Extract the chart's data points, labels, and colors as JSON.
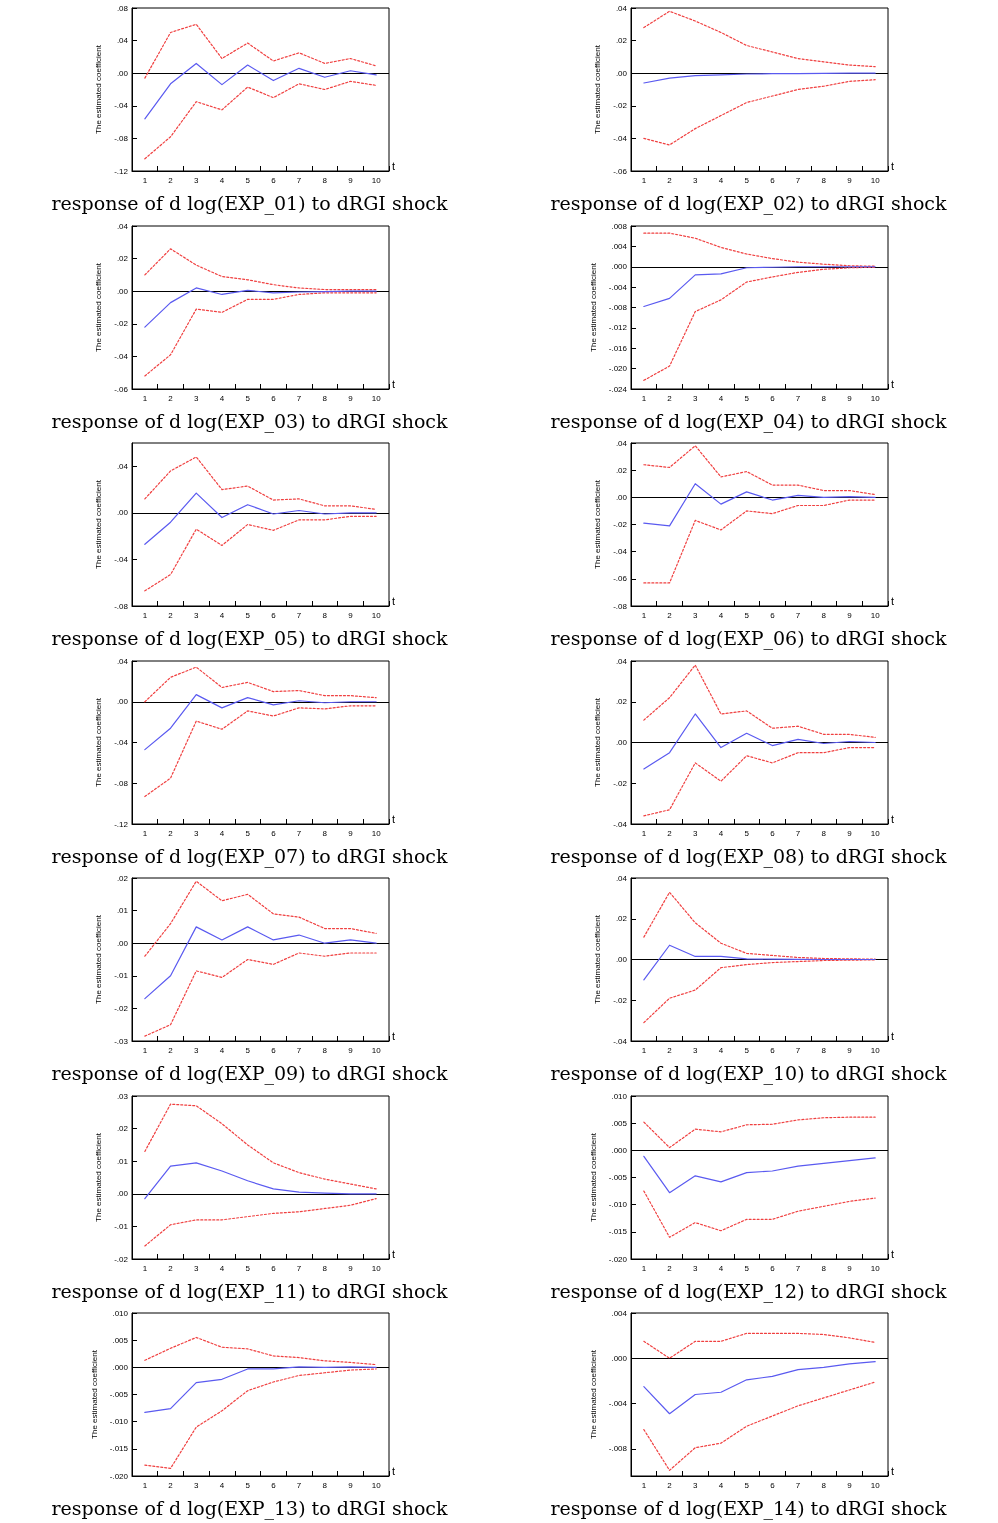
{
  "chart_data": [
    {
      "type": "line",
      "title": "response of d log(EXP_01) to dRGI shock",
      "xlabel": "t",
      "ylabel": "The estimated coefficient",
      "marker": "none",
      "categories": [
        "1",
        "2",
        "3",
        "4",
        "5",
        "6",
        "7",
        "8",
        "9",
        "10"
      ],
      "ylim": [
        -0.12,
        0.08
      ],
      "yticks": [
        {
          "value": 0.08,
          "label": ".08"
        },
        {
          "value": 0.04,
          "label": ".04"
        },
        {
          "value": 0,
          "label": ".00"
        },
        {
          "value": -0.04,
          "label": "-.04"
        },
        {
          "value": -0.08,
          "label": "-.08"
        },
        {
          "value": -0.12,
          "label": "-.12"
        }
      ],
      "ref_lines": [
        {
          "axis": "y",
          "value": 0,
          "color": "#000000"
        }
      ],
      "series": [
        {
          "color": "#5a5af0",
          "line_style": "solid",
          "values": [
            -0.056,
            -0.013,
            0.012,
            -0.014,
            0.01,
            -0.009,
            0.006,
            -0.005,
            0.003,
            -0.002
          ]
        },
        {
          "color": "#f04040",
          "line_style": "dotted",
          "values": [
            -0.006,
            0.05,
            0.06,
            0.018,
            0.037,
            0.015,
            0.025,
            0.012,
            0.018,
            0.009
          ]
        },
        {
          "color": "#f04040",
          "line_style": "dotted",
          "values": [
            -0.105,
            -0.078,
            -0.035,
            -0.045,
            -0.017,
            -0.03,
            -0.013,
            -0.02,
            -0.01,
            -0.015
          ]
        }
      ]
    },
    {
      "type": "line",
      "title": "response of d log(EXP_02) to dRGI shock",
      "xlabel": "t",
      "ylabel": "The estimated coefficient",
      "marker": "none",
      "categories": [
        "1",
        "2",
        "3",
        "4",
        "5",
        "6",
        "7",
        "8",
        "9",
        "10"
      ],
      "ylim": [
        -0.06,
        0.04
      ],
      "yticks": [
        {
          "value": 0.04,
          "label": ".04"
        },
        {
          "value": 0.02,
          "label": ".02"
        },
        {
          "value": 0,
          "label": ".00"
        },
        {
          "value": -0.02,
          "label": "-.02"
        },
        {
          "value": -0.04,
          "label": "-.04"
        },
        {
          "value": -0.06,
          "label": "-.06"
        }
      ],
      "ref_lines": [
        {
          "axis": "y",
          "value": 0,
          "color": "#000000"
        }
      ],
      "series": [
        {
          "color": "#5a5af0",
          "line_style": "solid",
          "values": [
            -0.006,
            -0.003,
            -0.0015,
            -0.001,
            -0.0005,
            -0.0003,
            -0.0002,
            -0.0001,
            0,
            0
          ]
        },
        {
          "color": "#f04040",
          "line_style": "dotted",
          "values": [
            0.028,
            0.038,
            0.032,
            0.025,
            0.017,
            0.013,
            0.009,
            0.007,
            0.005,
            0.004
          ]
        },
        {
          "color": "#f04040",
          "line_style": "dotted",
          "values": [
            -0.04,
            -0.044,
            -0.034,
            -0.026,
            -0.018,
            -0.014,
            -0.01,
            -0.008,
            -0.005,
            -0.004
          ]
        }
      ]
    },
    {
      "type": "line",
      "title": "response of d log(EXP_03) to dRGI shock",
      "xlabel": "t",
      "ylabel": "The estimated coefficient",
      "marker": "none",
      "categories": [
        "1",
        "2",
        "3",
        "4",
        "5",
        "6",
        "7",
        "8",
        "9",
        "10"
      ],
      "ylim": [
        -0.06,
        0.04
      ],
      "yticks": [
        {
          "value": 0.04,
          "label": ".04"
        },
        {
          "value": 0.02,
          "label": ".02"
        },
        {
          "value": 0,
          "label": ".00"
        },
        {
          "value": -0.02,
          "label": "-.02"
        },
        {
          "value": -0.04,
          "label": "-.04"
        },
        {
          "value": -0.06,
          "label": "-.06"
        }
      ],
      "ref_lines": [
        {
          "axis": "y",
          "value": 0,
          "color": "#000000"
        }
      ],
      "series": [
        {
          "color": "#5a5af0",
          "line_style": "solid",
          "values": [
            -0.022,
            -0.007,
            0.002,
            -0.002,
            0.0005,
            -0.001,
            -0.0005,
            -0.0003,
            0,
            0
          ]
        },
        {
          "color": "#f04040",
          "line_style": "dotted",
          "values": [
            0.01,
            0.026,
            0.016,
            0.009,
            0.007,
            0.004,
            0.002,
            0.001,
            0.001,
            0.001
          ]
        },
        {
          "color": "#f04040",
          "line_style": "dotted",
          "values": [
            -0.052,
            -0.039,
            -0.011,
            -0.013,
            -0.005,
            -0.005,
            -0.002,
            -0.001,
            -0.001,
            -0.001
          ]
        }
      ]
    },
    {
      "type": "line",
      "title": "response of d log(EXP_04) to dRGI shock",
      "xlabel": "t",
      "ylabel": "The estimated coefficient",
      "marker": "none",
      "categories": [
        "1",
        "2",
        "3",
        "4",
        "5",
        "6",
        "7",
        "8",
        "9",
        "10"
      ],
      "ylim": [
        -0.024,
        0.008
      ],
      "yticks": [
        {
          "value": 0.008,
          "label": ".008"
        },
        {
          "value": 0.004,
          "label": ".004"
        },
        {
          "value": 0,
          "label": ".000"
        },
        {
          "value": -0.004,
          "label": "-.004"
        },
        {
          "value": -0.008,
          "label": "-.008"
        },
        {
          "value": -0.012,
          "label": "-.012"
        },
        {
          "value": -0.016,
          "label": "-.016"
        },
        {
          "value": -0.02,
          "label": "-.020"
        },
        {
          "value": -0.024,
          "label": "-.024"
        }
      ],
      "ref_lines": [
        {
          "axis": "y",
          "value": 0,
          "color": "#000000"
        }
      ],
      "series": [
        {
          "color": "#5a5af0",
          "line_style": "solid",
          "values": [
            -0.0078,
            -0.0062,
            -0.0016,
            -0.0014,
            -0.0002,
            -0.0001,
            0,
            0,
            0,
            0
          ]
        },
        {
          "color": "#f04040",
          "line_style": "dotted",
          "values": [
            0.0066,
            0.0066,
            0.0056,
            0.0038,
            0.0025,
            0.0016,
            0.0009,
            0.0005,
            0.0002,
            0.0001
          ]
        },
        {
          "color": "#f04040",
          "line_style": "dotted",
          "values": [
            -0.0223,
            -0.0195,
            -0.0088,
            -0.0065,
            -0.003,
            -0.002,
            -0.0011,
            -0.0005,
            -0.0002,
            -0.0001
          ]
        }
      ]
    },
    {
      "type": "line",
      "title": "response of d log(EXP_05) to dRGI shock",
      "xlabel": "t",
      "ylabel": "The estimated coefficient",
      "marker": "none",
      "categories": [
        "1",
        "2",
        "3",
        "4",
        "5",
        "6",
        "7",
        "8",
        "9",
        "10"
      ],
      "ylim": [
        -0.08,
        0.06
      ],
      "yticks": [
        {
          "value": 0.04,
          "label": ".04"
        },
        {
          "value": 0,
          "label": ".00"
        },
        {
          "value": -0.04,
          "label": "-.04"
        },
        {
          "value": -0.08,
          "label": "-.08"
        }
      ],
      "ref_lines": [
        {
          "axis": "y",
          "value": 0,
          "color": "#000000"
        }
      ],
      "series": [
        {
          "color": "#5a5af0",
          "line_style": "solid",
          "values": [
            -0.027,
            -0.008,
            0.017,
            -0.004,
            0.007,
            -0.001,
            0.002,
            -0.001,
            0,
            0
          ]
        },
        {
          "color": "#f04040",
          "line_style": "dotted",
          "values": [
            0.012,
            0.036,
            0.048,
            0.02,
            0.023,
            0.011,
            0.012,
            0.006,
            0.006,
            0.003
          ]
        },
        {
          "color": "#f04040",
          "line_style": "dotted",
          "values": [
            -0.067,
            -0.053,
            -0.014,
            -0.028,
            -0.01,
            -0.015,
            -0.006,
            -0.006,
            -0.003,
            -0.003
          ]
        }
      ]
    },
    {
      "type": "line",
      "title": "response of d log(EXP_06) to dRGI shock",
      "xlabel": "t",
      "ylabel": "The estimated coefficient",
      "marker": "none",
      "categories": [
        "1",
        "2",
        "3",
        "4",
        "5",
        "6",
        "7",
        "8",
        "9",
        "10"
      ],
      "ylim": [
        -0.08,
        0.04
      ],
      "yticks": [
        {
          "value": 0.04,
          "label": ".04"
        },
        {
          "value": 0.02,
          "label": ".02"
        },
        {
          "value": 0,
          "label": ".00"
        },
        {
          "value": -0.02,
          "label": "-.02"
        },
        {
          "value": -0.04,
          "label": "-.04"
        },
        {
          "value": -0.06,
          "label": "-.06"
        },
        {
          "value": -0.08,
          "label": "-.08"
        }
      ],
      "ref_lines": [
        {
          "axis": "y",
          "value": 0,
          "color": "#000000"
        }
      ],
      "series": [
        {
          "color": "#5a5af0",
          "line_style": "solid",
          "values": [
            -0.019,
            -0.021,
            0.01,
            -0.005,
            0.004,
            -0.002,
            0.0015,
            0,
            0.0005,
            0
          ]
        },
        {
          "color": "#f04040",
          "line_style": "dotted",
          "values": [
            0.024,
            0.022,
            0.038,
            0.015,
            0.019,
            0.009,
            0.009,
            0.005,
            0.005,
            0.002
          ]
        },
        {
          "color": "#f04040",
          "line_style": "dotted",
          "values": [
            -0.063,
            -0.063,
            -0.017,
            -0.024,
            -0.01,
            -0.012,
            -0.006,
            -0.006,
            -0.002,
            -0.002
          ]
        }
      ]
    },
    {
      "type": "line",
      "title": "response of d log(EXP_07) to dRGI shock",
      "xlabel": "t",
      "ylabel": "The estimated coefficient",
      "marker": "none",
      "categories": [
        "1",
        "2",
        "3",
        "4",
        "5",
        "6",
        "7",
        "8",
        "9",
        "10"
      ],
      "ylim": [
        -0.12,
        0.04
      ],
      "yticks": [
        {
          "value": 0.04,
          "label": ".04"
        },
        {
          "value": 0,
          "label": ".00"
        },
        {
          "value": -0.04,
          "label": "-.04"
        },
        {
          "value": -0.08,
          "label": "-.08"
        },
        {
          "value": -0.12,
          "label": "-.12"
        }
      ],
      "ref_lines": [
        {
          "axis": "y",
          "value": 0,
          "color": "#000000"
        }
      ],
      "series": [
        {
          "color": "#5a5af0",
          "line_style": "solid",
          "values": [
            -0.047,
            -0.026,
            0.007,
            -0.006,
            0.004,
            -0.003,
            0.001,
            -0.001,
            0,
            0
          ]
        },
        {
          "color": "#f04040",
          "line_style": "dotted",
          "values": [
            0,
            0.024,
            0.034,
            0.014,
            0.019,
            0.01,
            0.011,
            0.006,
            0.006,
            0.004
          ]
        },
        {
          "color": "#f04040",
          "line_style": "dotted",
          "values": [
            -0.093,
            -0.075,
            -0.019,
            -0.027,
            -0.009,
            -0.014,
            -0.006,
            -0.007,
            -0.004,
            -0.004
          ]
        }
      ]
    },
    {
      "type": "line",
      "title": "response of d log(EXP_08) to dRGI shock",
      "xlabel": "t",
      "ylabel": "The estimated coefficient",
      "marker": "none",
      "categories": [
        "1",
        "2",
        "3",
        "4",
        "5",
        "6",
        "7",
        "8",
        "9",
        "10"
      ],
      "ylim": [
        -0.04,
        0.04
      ],
      "yticks": [
        {
          "value": 0.04,
          "label": ".04"
        },
        {
          "value": 0.02,
          "label": ".02"
        },
        {
          "value": 0,
          "label": ".00"
        },
        {
          "value": -0.02,
          "label": "-.02"
        },
        {
          "value": -0.04,
          "label": "-.04"
        }
      ],
      "ref_lines": [
        {
          "axis": "y",
          "value": 0,
          "color": "#000000"
        }
      ],
      "series": [
        {
          "color": "#5a5af0",
          "line_style": "solid",
          "values": [
            -0.013,
            -0.005,
            0.014,
            -0.0025,
            0.0045,
            -0.0015,
            0.0015,
            -0.0005,
            0.0005,
            0
          ]
        },
        {
          "color": "#f04040",
          "line_style": "dotted",
          "values": [
            0.011,
            0.022,
            0.038,
            0.014,
            0.0155,
            0.007,
            0.008,
            0.004,
            0.004,
            0.0025
          ]
        },
        {
          "color": "#f04040",
          "line_style": "dotted",
          "values": [
            -0.036,
            -0.033,
            -0.01,
            -0.019,
            -0.0065,
            -0.01,
            -0.005,
            -0.005,
            -0.0025,
            -0.0025
          ]
        }
      ]
    },
    {
      "type": "line",
      "title": "response of d log(EXP_09) to dRGI shock",
      "xlabel": "t",
      "ylabel": "The estimated coefficient",
      "marker": "none",
      "categories": [
        "1",
        "2",
        "3",
        "4",
        "5",
        "6",
        "7",
        "8",
        "9",
        "10"
      ],
      "ylim": [
        -0.03,
        0.02
      ],
      "yticks": [
        {
          "value": 0.02,
          "label": ".02"
        },
        {
          "value": 0.01,
          "label": ".01"
        },
        {
          "value": 0,
          "label": ".00"
        },
        {
          "value": -0.01,
          "label": "-.01"
        },
        {
          "value": -0.02,
          "label": "-.02"
        },
        {
          "value": -0.03,
          "label": "-.03"
        }
      ],
      "ref_lines": [
        {
          "axis": "y",
          "value": 0,
          "color": "#000000"
        }
      ],
      "series": [
        {
          "color": "#5a5af0",
          "line_style": "solid",
          "values": [
            -0.017,
            -0.01,
            0.005,
            0.001,
            0.005,
            0.001,
            0.0025,
            0,
            0.001,
            0
          ]
        },
        {
          "color": "#f04040",
          "line_style": "dotted",
          "values": [
            -0.004,
            0.006,
            0.019,
            0.013,
            0.015,
            0.009,
            0.008,
            0.0045,
            0.0045,
            0.003
          ]
        },
        {
          "color": "#f04040",
          "line_style": "dotted",
          "values": [
            -0.0285,
            -0.025,
            -0.0085,
            -0.0105,
            -0.005,
            -0.0065,
            -0.003,
            -0.004,
            -0.003,
            -0.003
          ]
        }
      ]
    },
    {
      "type": "line",
      "title": "response of d log(EXP_10) to dRGI shock",
      "xlabel": "t",
      "ylabel": "The estimated coefficient",
      "marker": "none",
      "categories": [
        "1",
        "2",
        "3",
        "4",
        "5",
        "6",
        "7",
        "8",
        "9",
        "10"
      ],
      "ylim": [
        -0.04,
        0.04
      ],
      "yticks": [
        {
          "value": 0.04,
          "label": ".04"
        },
        {
          "value": 0.02,
          "label": ".02"
        },
        {
          "value": 0,
          "label": ".00"
        },
        {
          "value": -0.02,
          "label": "-.02"
        },
        {
          "value": -0.04,
          "label": "-.04"
        }
      ],
      "ref_lines": [
        {
          "axis": "y",
          "value": 0,
          "color": "#000000"
        }
      ],
      "series": [
        {
          "color": "#5a5af0",
          "line_style": "solid",
          "values": [
            -0.01,
            0.007,
            0.0015,
            0.0015,
            0.0003,
            0.0002,
            0.0001,
            0,
            0,
            0
          ]
        },
        {
          "color": "#f04040",
          "line_style": "dotted",
          "values": [
            0.011,
            0.033,
            0.018,
            0.008,
            0.003,
            0.002,
            0.001,
            0.0005,
            0.0003,
            0.0002
          ]
        },
        {
          "color": "#f04040",
          "line_style": "dotted",
          "values": [
            -0.031,
            -0.019,
            -0.015,
            -0.004,
            -0.0025,
            -0.0015,
            -0.001,
            -0.0005,
            -0.0003,
            -0.0002
          ]
        }
      ]
    },
    {
      "type": "line",
      "title": "response of d log(EXP_11) to dRGI shock",
      "xlabel": "t",
      "ylabel": "The estimated coefficient",
      "marker": "none",
      "categories": [
        "1",
        "2",
        "3",
        "4",
        "5",
        "6",
        "7",
        "8",
        "9",
        "10"
      ],
      "ylim": [
        -0.02,
        0.03
      ],
      "yticks": [
        {
          "value": 0.03,
          "label": ".03"
        },
        {
          "value": 0.02,
          "label": ".02"
        },
        {
          "value": 0.01,
          "label": ".01"
        },
        {
          "value": 0,
          "label": ".00"
        },
        {
          "value": -0.01,
          "label": "-.01"
        },
        {
          "value": -0.02,
          "label": "-.02"
        }
      ],
      "ref_lines": [
        {
          "axis": "y",
          "value": 0,
          "color": "#000000"
        }
      ],
      "series": [
        {
          "color": "#5a5af0",
          "line_style": "solid",
          "values": [
            -0.0015,
            0.0085,
            0.0095,
            0.007,
            0.004,
            0.0015,
            0.0005,
            0.0002,
            0,
            0
          ]
        },
        {
          "color": "#f04040",
          "line_style": "dotted",
          "values": [
            0.013,
            0.0275,
            0.027,
            0.0215,
            0.015,
            0.0095,
            0.0065,
            0.0045,
            0.003,
            0.0015
          ]
        },
        {
          "color": "#f04040",
          "line_style": "dotted",
          "values": [
            -0.016,
            -0.0095,
            -0.008,
            -0.008,
            -0.007,
            -0.006,
            -0.0055,
            -0.0045,
            -0.0035,
            -0.0015
          ]
        }
      ]
    },
    {
      "type": "line",
      "title": "response of d log(EXP_12) to dRGI shock",
      "xlabel": "t",
      "ylabel": "The estimated coefficient",
      "marker": "none",
      "categories": [
        "1",
        "2",
        "3",
        "4",
        "5",
        "6",
        "7",
        "8",
        "9",
        "10"
      ],
      "ylim": [
        -0.02,
        0.01
      ],
      "yticks": [
        {
          "value": 0.01,
          "label": ".010"
        },
        {
          "value": 0.005,
          "label": ".005"
        },
        {
          "value": 0,
          "label": ".000"
        },
        {
          "value": -0.005,
          "label": "-.005"
        },
        {
          "value": -0.01,
          "label": "-.010"
        },
        {
          "value": -0.015,
          "label": "-.015"
        },
        {
          "value": -0.02,
          "label": "-.020"
        }
      ],
      "ref_lines": [
        {
          "axis": "y",
          "value": 0,
          "color": "#000000"
        }
      ],
      "series": [
        {
          "color": "#5a5af0",
          "line_style": "solid",
          "values": [
            -0.0011,
            -0.0078,
            -0.0047,
            -0.0058,
            -0.0041,
            -0.0038,
            -0.0029,
            -0.0024,
            -0.0019,
            -0.0014
          ]
        },
        {
          "color": "#f04040",
          "line_style": "dotted",
          "values": [
            0.0052,
            0.0005,
            0.0039,
            0.0034,
            0.0047,
            0.0048,
            0.0056,
            0.006,
            0.0061,
            0.0061
          ]
        },
        {
          "color": "#f04040",
          "line_style": "dotted",
          "values": [
            -0.0075,
            -0.016,
            -0.0133,
            -0.0148,
            -0.0127,
            -0.0127,
            -0.0112,
            -0.0103,
            -0.0094,
            -0.0088
          ]
        }
      ]
    },
    {
      "type": "line",
      "title": "response of d log(EXP_13) to dRGI shock",
      "xlabel": "t",
      "ylabel": "The estimated coefficient",
      "marker": "none",
      "categories": [
        "1",
        "2",
        "3",
        "4",
        "5",
        "6",
        "7",
        "8",
        "9",
        "10"
      ],
      "ylim": [
        -0.02,
        0.01
      ],
      "yticks": [
        {
          "value": 0.01,
          "label": ".010"
        },
        {
          "value": 0.005,
          "label": ".005"
        },
        {
          "value": 0,
          "label": ".000"
        },
        {
          "value": -0.005,
          "label": "-.005"
        },
        {
          "value": -0.01,
          "label": "-.010"
        },
        {
          "value": -0.015,
          "label": "-.015"
        },
        {
          "value": -0.02,
          "label": "-.020"
        }
      ],
      "ref_lines": [
        {
          "axis": "y",
          "value": 0,
          "color": "#000000"
        }
      ],
      "series": [
        {
          "color": "#5a5af0",
          "line_style": "solid",
          "values": [
            -0.0083,
            -0.0076,
            -0.0028,
            -0.0022,
            -0.0003,
            -0.0003,
            0.0001,
            0,
            0.0001,
            0
          ]
        },
        {
          "color": "#f04040",
          "line_style": "dotted",
          "values": [
            0.0013,
            0.0035,
            0.0055,
            0.0037,
            0.0034,
            0.0021,
            0.0018,
            0.0012,
            0.0009,
            0.0005
          ]
        },
        {
          "color": "#f04040",
          "line_style": "dotted",
          "values": [
            -0.018,
            -0.0186,
            -0.011,
            -0.008,
            -0.0043,
            -0.0027,
            -0.0015,
            -0.001,
            -0.0005,
            -0.0003
          ]
        }
      ]
    },
    {
      "type": "line",
      "title": "response of d log(EXP_14) to dRGI shock",
      "xlabel": "t",
      "ylabel": "The estimated coefficient",
      "marker": "none",
      "categories": [
        "1",
        "2",
        "3",
        "4",
        "5",
        "6",
        "7",
        "8",
        "9",
        "10"
      ],
      "ylim": [
        -0.0104,
        0.004
      ],
      "yticks": [
        {
          "value": 0.004,
          "label": ".004"
        },
        {
          "value": 0,
          "label": ".000"
        },
        {
          "value": -0.004,
          "label": "-.004"
        },
        {
          "value": -0.008,
          "label": "-.008"
        }
      ],
      "ref_lines": [
        {
          "axis": "y",
          "value": 0,
          "color": "#000000"
        }
      ],
      "series": [
        {
          "color": "#5a5af0",
          "line_style": "solid",
          "values": [
            -0.0025,
            -0.0049,
            -0.0032,
            -0.003,
            -0.0019,
            -0.0016,
            -0.001,
            -0.0008,
            -0.0005,
            -0.0003
          ]
        },
        {
          "color": "#f04040",
          "line_style": "dotted",
          "values": [
            0.0015,
            0,
            0.0015,
            0.0015,
            0.0022,
            0.0022,
            0.0022,
            0.0021,
            0.0018,
            0.0014
          ]
        },
        {
          "color": "#f04040",
          "line_style": "dotted",
          "values": [
            -0.0063,
            -0.0099,
            -0.0079,
            -0.0075,
            -0.006,
            -0.0051,
            -0.0042,
            -0.0035,
            -0.0028,
            -0.0021
          ]
        }
      ]
    }
  ]
}
